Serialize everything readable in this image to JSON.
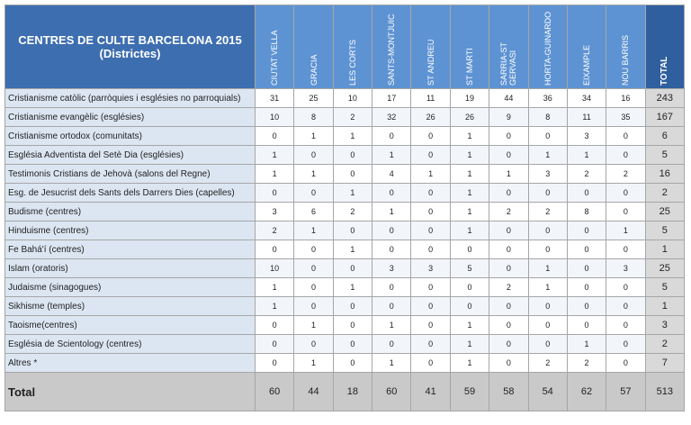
{
  "header": {
    "title": "CENTRES DE CULTE BARCELONA 2015",
    "subtitle": "(Districtes)"
  },
  "table": {
    "columns": [
      "CIUTAT VELLA",
      "GRACIA",
      "LES CORTS",
      "SANTS-MONTJUIC",
      "ST ANDREU",
      "ST MARTI",
      "SARRIA-ST GERVASI",
      "HORTA-GUINARDO",
      "EIXAMPLE",
      "NOU BARRIS",
      "TOTAL"
    ],
    "rows": [
      [
        "Cristianisme catòlic (parròquies i esglésies no parroquials)",
        31,
        25,
        10,
        17,
        11,
        19,
        44,
        36,
        34,
        16,
        243
      ],
      [
        "Cristianisme evangèlic (esglésies)",
        10,
        8,
        2,
        32,
        26,
        26,
        9,
        8,
        11,
        35,
        167
      ],
      [
        "Cristianisme ortodox (comunitats)",
        0,
        1,
        1,
        0,
        0,
        1,
        0,
        0,
        3,
        0,
        6
      ],
      [
        "Església Adventista del Setè Dia (esglésies)",
        1,
        0,
        0,
        1,
        0,
        1,
        0,
        1,
        1,
        0,
        5
      ],
      [
        "Testimonis Cristians de Jehovà (salons del Regne)",
        1,
        1,
        0,
        4,
        1,
        1,
        1,
        3,
        2,
        2,
        16
      ],
      [
        "Esg. de Jesucrist dels Sants dels Darrers Dies (capelles)",
        0,
        0,
        1,
        0,
        0,
        1,
        0,
        0,
        0,
        0,
        2
      ],
      [
        "Budisme (centres)",
        3,
        6,
        2,
        1,
        0,
        1,
        2,
        2,
        8,
        0,
        25
      ],
      [
        "Hinduisme (centres)",
        2,
        1,
        0,
        0,
        0,
        1,
        0,
        0,
        0,
        1,
        5
      ],
      [
        "Fe Bahá'í (centres)",
        0,
        0,
        1,
        0,
        0,
        0,
        0,
        0,
        0,
        0,
        1
      ],
      [
        "Islam (oratoris)",
        10,
        0,
        0,
        3,
        3,
        5,
        0,
        1,
        0,
        3,
        25
      ],
      [
        "Judaisme (sinagogues)",
        1,
        0,
        1,
        0,
        0,
        0,
        2,
        1,
        0,
        0,
        5
      ],
      [
        "Sikhisme (temples)",
        1,
        0,
        0,
        0,
        0,
        0,
        0,
        0,
        0,
        0,
        1
      ],
      [
        "Taoisme(centres)",
        0,
        1,
        0,
        1,
        0,
        1,
        0,
        0,
        0,
        0,
        3
      ],
      [
        "Església de Scientology (centres)",
        0,
        0,
        0,
        0,
        0,
        1,
        0,
        0,
        1,
        0,
        2
      ],
      [
        "Altres *",
        0,
        1,
        0,
        1,
        0,
        1,
        0,
        2,
        2,
        0,
        7
      ]
    ],
    "total": [
      "Total",
      60,
      44,
      18,
      60,
      41,
      59,
      58,
      54,
      62,
      57,
      513
    ]
  }
}
